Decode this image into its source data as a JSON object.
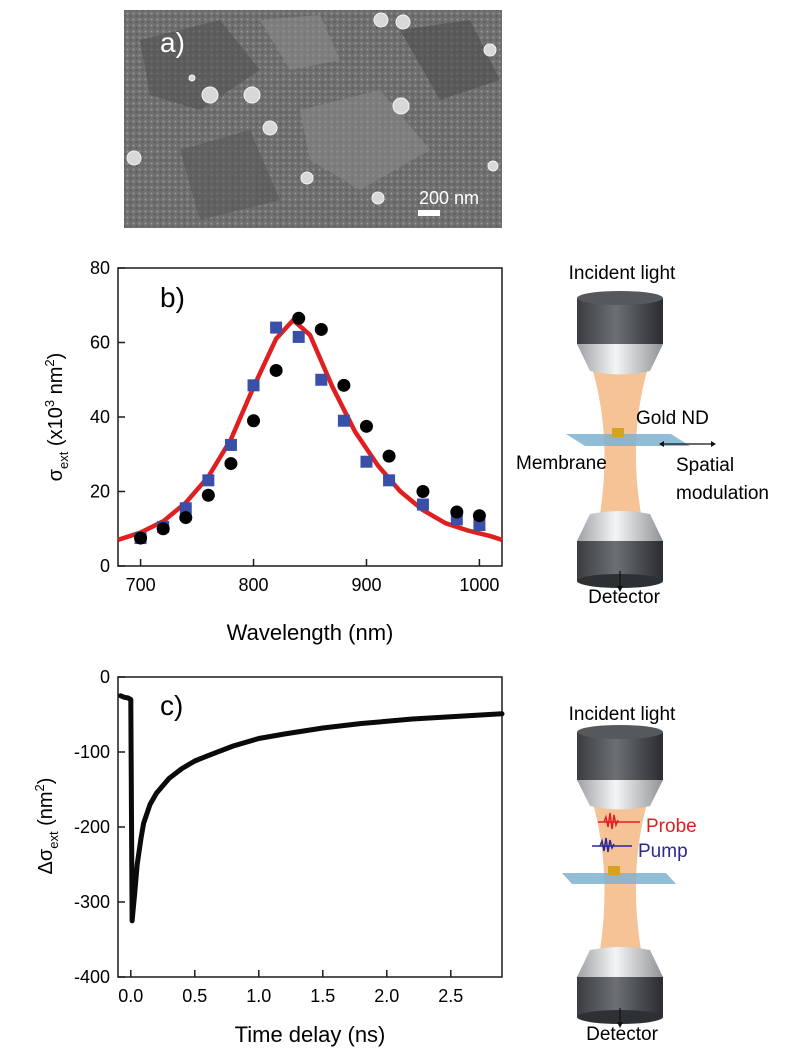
{
  "panel_a": {
    "label": "a)",
    "scale_bar_label": "200 nm"
  },
  "schematic_b": {
    "incident": "Incident light",
    "gold": "Gold ND",
    "membrane": "Membrane",
    "spatial_1": "Spatial",
    "spatial_2": "modulation",
    "detector": "Detector"
  },
  "schematic_c": {
    "incident": "Incident light",
    "probe": "Probe",
    "pump": "Pump",
    "detector": "Detector"
  },
  "colors": {
    "fit_line": "#e02020",
    "series_circles": "#000000",
    "series_squares": "#3a4fa8",
    "trace": "#0a0a0a",
    "probe": "#e02020",
    "pump": "#2a2a90",
    "beam": "#f3b47c",
    "membrane": "#7fb2cf"
  },
  "chart_data": [
    {
      "type": "scatter",
      "panel_label": "b)",
      "xlabel": "Wavelength (nm)",
      "ylabel": "σext (x10³ nm²)",
      "xlim": [
        680,
        1020
      ],
      "ylim": [
        0,
        80
      ],
      "xticks": [
        700,
        800,
        900,
        1000
      ],
      "yticks": [
        0,
        20,
        40,
        60,
        80
      ],
      "series": [
        {
          "marker": "circle",
          "x": [
            700,
            720,
            740,
            760,
            780,
            800,
            820,
            840,
            860,
            880,
            900,
            920,
            950,
            980,
            1000
          ],
          "y": [
            7.5,
            10,
            13,
            19,
            27.5,
            39,
            52.5,
            66.5,
            63.5,
            48.5,
            37.5,
            29.5,
            20,
            14.5,
            13.5
          ]
        },
        {
          "marker": "square",
          "x": [
            700,
            720,
            740,
            760,
            780,
            800,
            820,
            840,
            860,
            880,
            900,
            920,
            950,
            980,
            1000
          ],
          "y": [
            7.5,
            10.5,
            15.5,
            23,
            32.5,
            48.5,
            64,
            61.5,
            50,
            39,
            28,
            23,
            16.5,
            12.5,
            11
          ]
        },
        {
          "marker": "line",
          "x": [
            680,
            700,
            720,
            740,
            760,
            780,
            800,
            820,
            835,
            850,
            870,
            890,
            910,
            930,
            950,
            970,
            990,
            1010,
            1020
          ],
          "y": [
            7,
            9,
            12,
            17,
            24,
            34,
            48,
            61,
            66,
            62,
            48,
            36,
            27,
            20,
            15,
            11.5,
            9.5,
            8,
            7
          ]
        }
      ]
    },
    {
      "type": "line",
      "panel_label": "c)",
      "xlabel": "Time delay (ns)",
      "ylabel": "Δσext (nm²)",
      "xlim": [
        -0.1,
        2.9
      ],
      "ylim": [
        -400,
        0
      ],
      "xticks": [
        0.0,
        0.5,
        1.0,
        1.5,
        2.0,
        2.5
      ],
      "yticks": [
        0,
        -100,
        -200,
        -300,
        -400
      ],
      "series": [
        {
          "x": [
            -0.08,
            -0.05,
            -0.02,
            0.0,
            0.01,
            0.03,
            0.05,
            0.08,
            0.1,
            0.15,
            0.2,
            0.3,
            0.4,
            0.5,
            0.6,
            0.8,
            1.0,
            1.2,
            1.5,
            1.8,
            2.0,
            2.2,
            2.5,
            2.8,
            2.9
          ],
          "y": [
            -25,
            -27,
            -28,
            -30,
            -325,
            -290,
            -250,
            -215,
            -195,
            -170,
            -155,
            -135,
            -122,
            -112,
            -105,
            -92,
            -82,
            -76,
            -68,
            -62,
            -59,
            -56,
            -53,
            -50,
            -49
          ]
        }
      ]
    }
  ]
}
